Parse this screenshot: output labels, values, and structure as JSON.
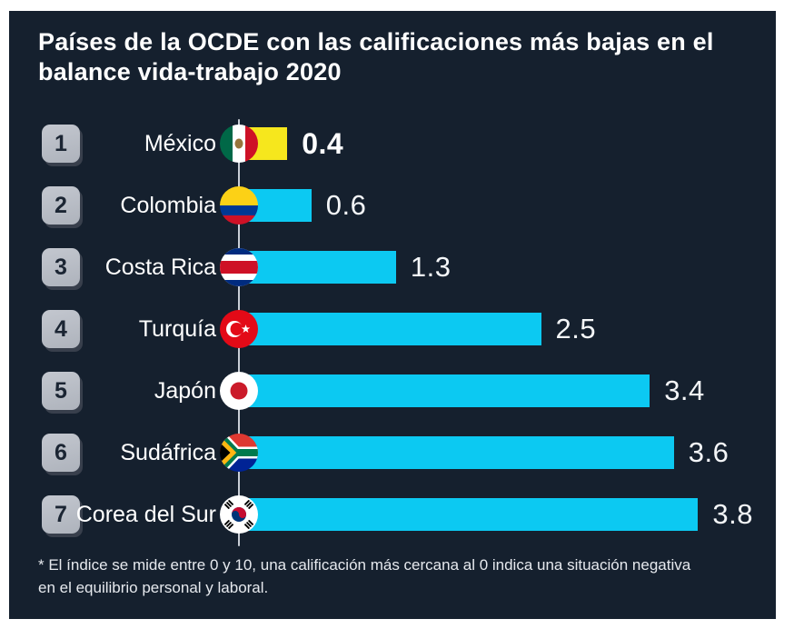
{
  "title": {
    "line1": "Países de la OCDE con las calificaciones más bajas en el",
    "line2": "balance vida-trabajo 2020"
  },
  "footnote": {
    "line1": "* El índice se mide entre 0 y 10, una calificación más cercana al 0 indica una situación negativa",
    "line2": "en el equilibrio personal y laboral."
  },
  "colors": {
    "background": "#15202e",
    "bar": "#0cc9f2",
    "highlight_bar": "#f6e71d",
    "text": "#ffffff",
    "badge": "#b9bec7",
    "axis_line": "#c9ced6"
  },
  "chart_data": {
    "type": "bar",
    "orientation": "horizontal",
    "title": "Países de la OCDE con las calificaciones más bajas en el balance vida-trabajo 2020",
    "categories": [
      "México",
      "Colombia",
      "Costa Rica",
      "Turquía",
      "Japón",
      "Sudáfrica",
      "Corea del Sur"
    ],
    "values": [
      0.4,
      0.6,
      1.3,
      2.5,
      3.4,
      3.6,
      3.8
    ],
    "ranks": [
      1,
      2,
      3,
      4,
      5,
      6,
      7
    ],
    "flags": [
      "mexico",
      "colombia",
      "costa-rica",
      "turkey",
      "japan",
      "south-africa",
      "south-korea"
    ],
    "highlight_index": 0,
    "index_range": [
      0,
      10
    ],
    "xlim": [
      0,
      4
    ],
    "grid": false,
    "legend": "none",
    "annotation": "* El índice se mide entre 0 y 10, una calificación más cercana al 0 indica una situación negativa en el equilibrio personal y laboral."
  }
}
